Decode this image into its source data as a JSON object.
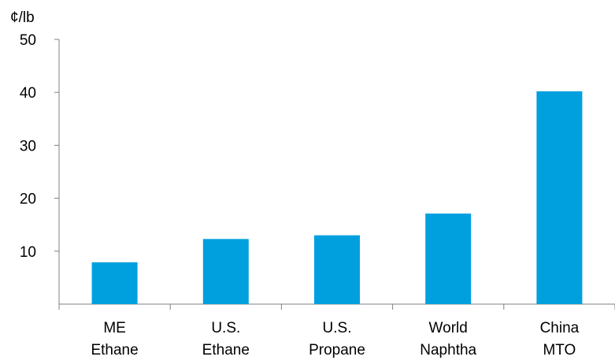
{
  "chart_data": {
    "type": "bar",
    "ylabel": "¢/lb",
    "categories": [
      [
        "ME",
        "Ethane"
      ],
      [
        "U.S.",
        "Ethane"
      ],
      [
        "U.S.",
        "Propane"
      ],
      [
        "World",
        "Naphtha"
      ],
      [
        "China",
        "MTO"
      ]
    ],
    "values": [
      7.9,
      12.3,
      13.0,
      17.1,
      40.2
    ],
    "yticks": [
      10,
      20,
      30,
      40,
      50
    ],
    "ylim": [
      0,
      50
    ],
    "grid": false,
    "legend": "none",
    "bar_color": "#00A0DF"
  }
}
